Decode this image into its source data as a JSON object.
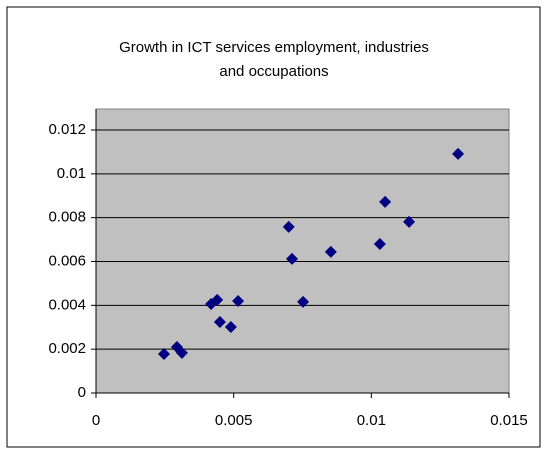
{
  "chart_data": {
    "type": "scatter",
    "title": [
      "Growth in ICT services employment, industries",
      "and occupations"
    ],
    "x": [
      0.00247,
      0.00294,
      0.00312,
      0.00418,
      0.0044,
      0.0045,
      0.0049,
      0.00516,
      0.007,
      0.00712,
      0.00752,
      0.00853,
      0.01031,
      0.0105,
      0.01137,
      0.01315
    ],
    "series": [
      {
        "color": "#000080",
        "values": [
          0.00178,
          0.0021,
          0.00183,
          0.00406,
          0.00425,
          0.00324,
          0.00301,
          0.0042,
          0.00758,
          0.00612,
          0.00416,
          0.00644,
          0.0068,
          0.00872,
          0.00781,
          0.01091
        ]
      }
    ],
    "xlim": [
      0,
      0.015
    ],
    "xticks": [
      0,
      0.005,
      0.01,
      0.015
    ],
    "ylim": [
      0,
      0.012
    ],
    "yticks": [
      0,
      0.002,
      0.004,
      0.006,
      0.008,
      0.01,
      0.012
    ],
    "grid": true
  }
}
